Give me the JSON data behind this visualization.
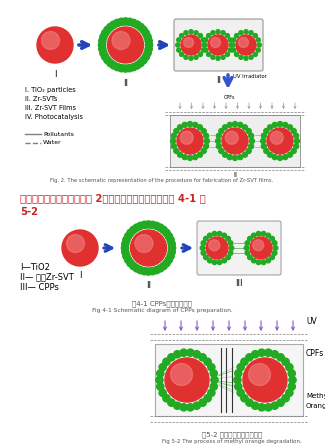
{
  "bg_color": "#ffffff",
  "title_line1": "上图来自张恩茹小论文的图 2，下图来自曹志普大论文图 4-1 和",
  "title_line2": "5-2",
  "title_color": "#cc2222",
  "title_fontsize": 7.0,
  "fig1_caption": "Fig. 2. The schematic representation of the procedure for fabrication of Zr-SVT films.",
  "fig2_caption1": "图4-1 CPPs的制备示意图",
  "fig2_caption2": "Fig 4-1 Schematic diagram of CPPs preparation.",
  "fig3_caption1": "图5-2 平面燃料降解的过程图",
  "fig3_caption2": "Fig 5-2 The process of methyl orange degradation.",
  "legend1_items": [
    "I—TiO2",
    "II— 多孔Zr-SVT",
    "III— CPPs"
  ],
  "legend_fig1": [
    "I. TiO₂ particles",
    "II. Zr-SVTs",
    "III. Zr-SVT Films",
    "IV. Photocatalysis"
  ],
  "arrow_color": "#2244bb",
  "sphere_red": "#e03030",
  "sphere_highlight": "#f08080",
  "green_dot": "#22aa22",
  "uv_arrow_color": "#8855cc",
  "gray_arrow_color": "#888888"
}
